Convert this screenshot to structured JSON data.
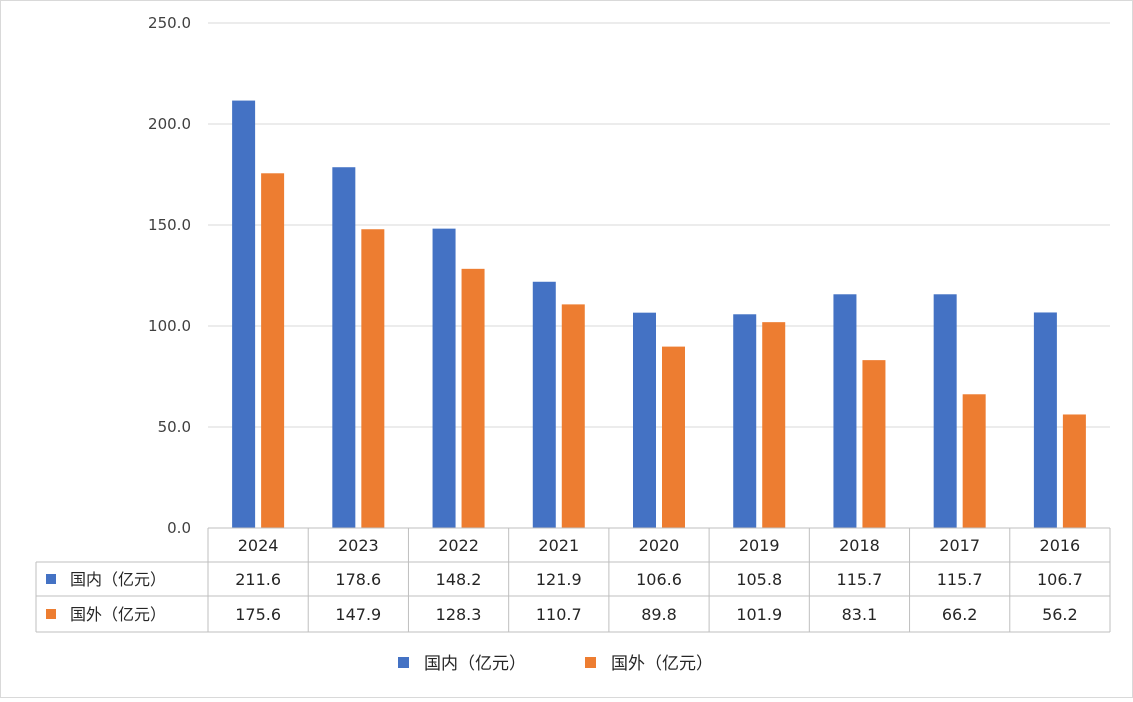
{
  "chart_data": {
    "type": "bar",
    "categories": [
      "2024",
      "2023",
      "2022",
      "2021",
      "2020",
      "2019",
      "2018",
      "2017",
      "2016"
    ],
    "series": [
      {
        "name": "国内（亿元）",
        "values": [
          211.6,
          178.6,
          148.2,
          121.9,
          106.6,
          105.8,
          115.7,
          115.7,
          106.7
        ],
        "color": "#4472C4"
      },
      {
        "name": "国外（亿元）",
        "values": [
          175.6,
          147.9,
          128.3,
          110.7,
          89.8,
          101.9,
          83.1,
          66.2,
          56.2
        ],
        "color": "#ED7D31"
      }
    ],
    "ylim": [
      0,
      250
    ],
    "yticks": [
      "0.0",
      "50.0",
      "100.0",
      "150.0",
      "200.0",
      "250.0"
    ],
    "grid": true,
    "data_table": true,
    "legend_position": "bottom"
  }
}
